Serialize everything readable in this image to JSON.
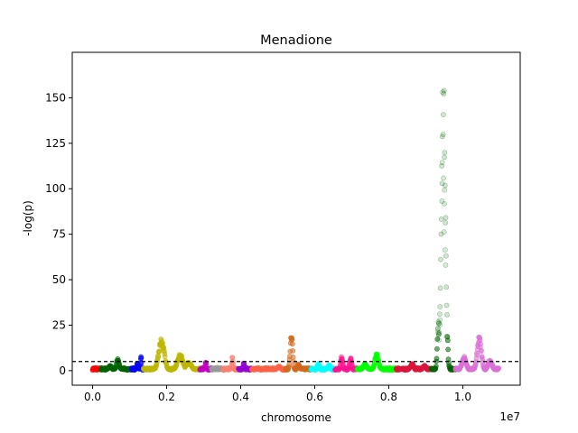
{
  "chart_data": {
    "type": "scatter",
    "title": "Menadione",
    "xlabel": "chromosome",
    "ylabel": "-log(p)",
    "x_offset_label": "1e7",
    "xlim": [
      -550000,
      11550000
    ],
    "ylim": [
      -8,
      175
    ],
    "x_ticks": [
      0.0,
      0.2,
      0.4,
      0.6,
      0.8,
      1.0
    ],
    "x_tick_labels": [
      "0.0",
      "0.2",
      "0.4",
      "0.6",
      "0.8",
      "1.0"
    ],
    "y_ticks": [
      0,
      25,
      50,
      75,
      100,
      125,
      150
    ],
    "y_tick_labels": [
      "0",
      "25",
      "50",
      "75",
      "100",
      "125",
      "150"
    ],
    "threshold": 5,
    "threshold_style": "dashed",
    "grid": false,
    "marker_opacity": 0.22,
    "chromosomes": [
      {
        "start": 0,
        "end": 230000,
        "color": "#ff0000",
        "peaks": [
          [
            0.1,
            1.5
          ]
        ]
      },
      {
        "start": 230000,
        "end": 1050000,
        "color": "#006400",
        "peaks": [
          [
            0.55,
            6.5
          ],
          [
            0.3,
            3
          ]
        ]
      },
      {
        "start": 1050000,
        "end": 1370000,
        "color": "#0000ff",
        "peaks": [
          [
            0.5,
            5
          ],
          [
            0.8,
            8
          ]
        ]
      },
      {
        "start": 1370000,
        "end": 2900000,
        "color": "#bdb700",
        "peaks": [
          [
            0.32,
            18
          ],
          [
            0.65,
            9.5
          ],
          [
            0.8,
            5
          ]
        ]
      },
      {
        "start": 2900000,
        "end": 3210000,
        "color": "#c000c0",
        "peaks": [
          [
            0.5,
            5
          ]
        ]
      },
      {
        "start": 3210000,
        "end": 3530000,
        "color": "#9a9a9a",
        "peaks": [
          [
            0.5,
            2
          ]
        ]
      },
      {
        "start": 3530000,
        "end": 3940000,
        "color": "#fa8072",
        "peaks": [
          [
            0.6,
            7.5
          ]
        ]
      },
      {
        "start": 3940000,
        "end": 4300000,
        "color": "#9400d3",
        "peaks": [
          [
            0.4,
            5
          ]
        ]
      },
      {
        "start": 4300000,
        "end": 5220000,
        "color": "#ff6347",
        "peaks": [
          [
            0.8,
            2.5
          ]
        ]
      },
      {
        "start": 5220000,
        "end": 5900000,
        "color": "#d2691e",
        "peaks": [
          [
            0.22,
            22
          ],
          [
            0.5,
            4
          ]
        ]
      },
      {
        "start": 5900000,
        "end": 6550000,
        "color": "#00ffff",
        "peaks": [
          [
            0.3,
            4
          ],
          [
            0.75,
            3.5
          ]
        ]
      },
      {
        "start": 6550000,
        "end": 7150000,
        "color": "#ff1493",
        "peaks": [
          [
            0.3,
            8
          ],
          [
            0.7,
            7.5
          ]
        ]
      },
      {
        "start": 7150000,
        "end": 8200000,
        "color": "#00ff00",
        "peaks": [
          [
            0.5,
            10
          ],
          [
            0.2,
            4
          ]
        ]
      },
      {
        "start": 8200000,
        "end": 9150000,
        "color": "#dc143c",
        "peaks": [
          [
            0.45,
            4
          ],
          [
            0.8,
            3
          ]
        ]
      },
      {
        "start": 9150000,
        "end": 9800000,
        "color": "#006400",
        "peaks": [
          [
            0.5,
            165
          ],
          [
            0.3,
            30
          ]
        ]
      },
      {
        "start": 9800000,
        "end": 10970000,
        "color": "#da70d6",
        "peaks": [
          [
            0.55,
            19
          ],
          [
            0.2,
            8
          ],
          [
            0.8,
            6
          ]
        ]
      }
    ]
  }
}
